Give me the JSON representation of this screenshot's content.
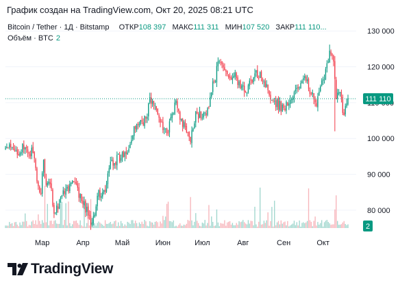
{
  "header": {
    "text": "График создан на TradingView.com, Окт 20, 2025 08:21 UTC"
  },
  "legend": {
    "symbol": "Bitcoin / Tether · 1Д · Bitstamp",
    "open_label": "ОТКР",
    "open_value": "108 397",
    "high_label": "МАКС",
    "high_value": "111 311",
    "low_label": "МИН",
    "low_value": "107 520",
    "close_label": "ЗАКР",
    "close_value": "111 110...",
    "volume_label": "Объём · BTC",
    "volume_value": "2"
  },
  "logo": {
    "text": "TradingView"
  },
  "colors": {
    "up": "#089981",
    "down": "#f23645",
    "up_volume": "#9fd6cd",
    "down_volume": "#f7b4ba",
    "text": "#131722"
  },
  "chart_data": {
    "type": "candlestick",
    "symbol": "Bitcoin / Tether",
    "interval": "1Д",
    "exchange": "Bitstamp",
    "last_price": 111110,
    "last_price_label": "111 110",
    "last_volume_label": "2",
    "ylim": [
      75000,
      131000
    ],
    "y_ticks": [
      80000,
      90000,
      100000,
      110000,
      120000,
      130000
    ],
    "y_tick_labels": [
      "80 000",
      "90 000",
      "100 000",
      "110 000",
      "120 000",
      "130 000"
    ],
    "x_ticks": [
      {
        "label": "Мар",
        "date": "2025-03-01"
      },
      {
        "label": "Апр",
        "date": "2025-04-01"
      },
      {
        "label": "Май",
        "date": "2025-05-01"
      },
      {
        "label": "Июн",
        "date": "2025-06-01"
      },
      {
        "label": "Июл",
        "date": "2025-07-01"
      },
      {
        "label": "Авг",
        "date": "2025-08-01"
      },
      {
        "label": "Сен",
        "date": "2025-09-01"
      },
      {
        "label": "Окт",
        "date": "2025-10-01"
      }
    ],
    "date_range": [
      "2025-02-01",
      "2025-10-20"
    ],
    "close_path": [
      [
        "2025-02-01",
        97500
      ],
      [
        "2025-02-08",
        96500
      ],
      [
        "2025-02-15",
        97000
      ],
      [
        "2025-02-22",
        96000
      ],
      [
        "2025-02-25",
        88000
      ],
      [
        "2025-02-28",
        84500
      ],
      [
        "2025-03-02",
        94000
      ],
      [
        "2025-03-04",
        87000
      ],
      [
        "2025-03-08",
        86000
      ],
      [
        "2025-03-10",
        79000
      ],
      [
        "2025-03-15",
        83500
      ],
      [
        "2025-03-20",
        86500
      ],
      [
        "2025-03-25",
        88000
      ],
      [
        "2025-03-31",
        82500
      ],
      [
        "2025-04-06",
        78500
      ],
      [
        "2025-04-08",
        76500
      ],
      [
        "2025-04-12",
        84000
      ],
      [
        "2025-04-18",
        85000
      ],
      [
        "2025-04-22",
        93500
      ],
      [
        "2025-04-30",
        94500
      ],
      [
        "2025-05-08",
        99500
      ],
      [
        "2025-05-12",
        104000
      ],
      [
        "2025-05-20",
        106000
      ],
      [
        "2025-05-22",
        111500
      ],
      [
        "2025-05-31",
        104500
      ],
      [
        "2025-06-05",
        101500
      ],
      [
        "2025-06-10",
        110000
      ],
      [
        "2025-06-15",
        105500
      ],
      [
        "2025-06-22",
        99000
      ],
      [
        "2025-06-26",
        107500
      ],
      [
        "2025-07-01",
        105800
      ],
      [
        "2025-07-05",
        108500
      ],
      [
        "2025-07-10",
        116000
      ],
      [
        "2025-07-14",
        121500
      ],
      [
        "2025-07-20",
        118000
      ],
      [
        "2025-07-25",
        117500
      ],
      [
        "2025-08-02",
        113000
      ],
      [
        "2025-08-09",
        117000
      ],
      [
        "2025-08-14",
        118500
      ],
      [
        "2025-08-20",
        113500
      ],
      [
        "2025-08-25",
        110500
      ],
      [
        "2025-09-01",
        108500
      ],
      [
        "2025-09-07",
        111000
      ],
      [
        "2025-09-14",
        115500
      ],
      [
        "2025-09-19",
        116500
      ],
      [
        "2025-09-22",
        112500
      ],
      [
        "2025-09-26",
        109000
      ],
      [
        "2025-10-01",
        116500
      ],
      [
        "2025-10-06",
        124500
      ],
      [
        "2025-10-09",
        121500
      ],
      [
        "2025-10-11",
        111000
      ],
      [
        "2025-10-14",
        113000
      ],
      [
        "2025-10-17",
        106500
      ],
      [
        "2025-10-20",
        111110
      ]
    ],
    "wick_extremes": [
      {
        "date": "2025-10-06",
        "high": 126200
      },
      {
        "date": "2025-10-10",
        "low": 102000
      },
      {
        "date": "2025-04-07",
        "low": 74500
      }
    ],
    "volume_spikes": [
      {
        "date": "2025-03-03"
      },
      {
        "date": "2025-04-07"
      },
      {
        "date": "2025-06-22"
      },
      {
        "date": "2025-08-14"
      },
      {
        "date": "2025-09-20"
      },
      {
        "date": "2025-10-11"
      }
    ]
  }
}
